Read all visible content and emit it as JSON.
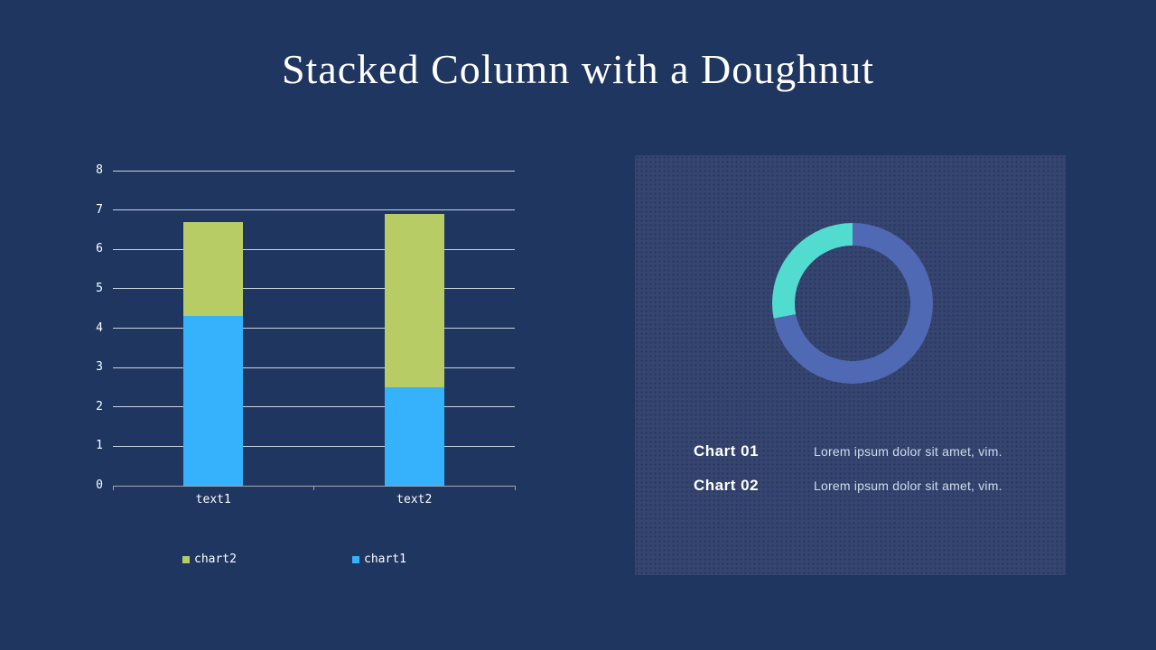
{
  "title": "Stacked Column with a Doughnut",
  "colors": {
    "background": "#1f3661",
    "panel": "#36456f",
    "series_chart1_blue": "#36b1fb",
    "series_chart2_green": "#b8cc66",
    "doughnut_primary": "#5069b5",
    "doughnut_secondary": "#52dcd0",
    "gridline": "#ebeff4",
    "axis": "#a6a6a6",
    "title_text": "#ffffff",
    "description_text": "#cfdcee"
  },
  "chart_data": [
    {
      "type": "bar",
      "variant": "stacked-column",
      "categories": [
        "text1",
        "text2"
      ],
      "series": [
        {
          "name": "chart1",
          "color": "#36b1fb",
          "values": [
            4.3,
            2.5
          ]
        },
        {
          "name": "chart2",
          "color": "#b8cc66",
          "values": [
            2.4,
            4.4
          ]
        }
      ],
      "ylim": [
        0,
        8
      ],
      "ytick_step": 1,
      "grid": true,
      "legend_position": "bottom"
    },
    {
      "type": "pie",
      "variant": "doughnut",
      "start_angle_deg": 0,
      "direction": "clockwise",
      "slices": [
        {
          "name": "primary",
          "color": "#5069b5",
          "pct": 72
        },
        {
          "name": "secondary",
          "color": "#52dcd0",
          "pct": 28
        }
      ]
    }
  ],
  "legend": {
    "items": [
      {
        "label": "chart2",
        "color": "#b8cc66"
      },
      {
        "label": "chart1",
        "color": "#36b1fb"
      }
    ]
  },
  "panel": {
    "rows": [
      {
        "label": "Chart 01",
        "description": "Lorem ipsum dolor sit amet, vim."
      },
      {
        "label": "Chart 02",
        "description": "Lorem ipsum dolor sit amet, vim."
      }
    ]
  }
}
